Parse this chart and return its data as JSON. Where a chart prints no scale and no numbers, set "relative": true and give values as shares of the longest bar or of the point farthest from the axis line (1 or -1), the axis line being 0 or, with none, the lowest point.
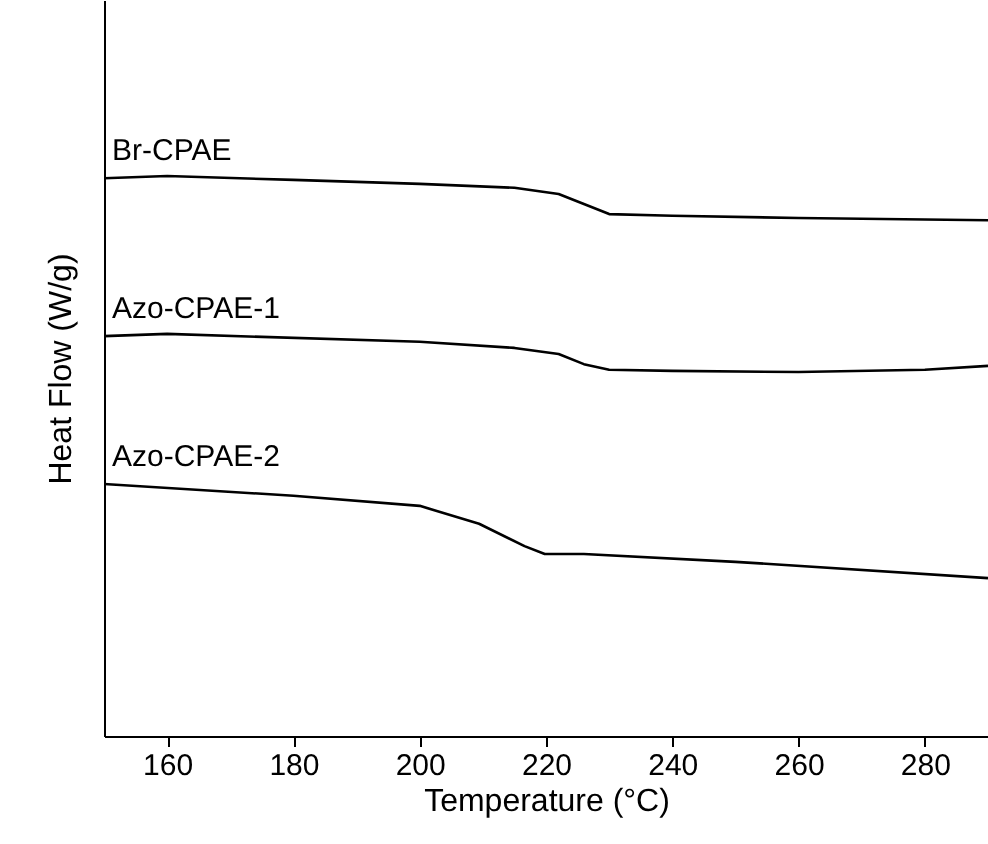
{
  "chart_data": {
    "type": "line",
    "xlabel": "Temperature (°C)",
    "ylabel": "Heat Flow (W/g)",
    "relative": true,
    "xlim": [
      150,
      290
    ],
    "xticks": [
      160,
      180,
      200,
      220,
      240,
      260,
      280
    ],
    "series": [
      {
        "name": "Br-CPAE",
        "color": "#000000",
        "x": [
          150,
          160,
          180,
          200,
          215,
          222,
          226,
          230,
          240,
          260,
          290
        ],
        "values": [
          0.996,
          1.0,
          0.993,
          0.986,
          0.979,
          0.968,
          0.95,
          0.932,
          0.929,
          0.925,
          0.921
        ]
      },
      {
        "name": "Azo-CPAE-1",
        "color": "#000000",
        "x": [
          150,
          160,
          200,
          215,
          222,
          226,
          230,
          240,
          260,
          280,
          290
        ],
        "values": [
          0.714,
          0.718,
          0.704,
          0.693,
          0.682,
          0.664,
          0.654,
          0.652,
          0.65,
          0.654,
          0.661
        ]
      },
      {
        "name": "Azo-CPAE-2",
        "color": "#000000",
        "x": [
          150,
          180,
          200,
          209.4,
          216.6,
          219.8,
          226,
          250,
          290
        ],
        "values": [
          0.45,
          0.429,
          0.411,
          0.379,
          0.339,
          0.325,
          0.325,
          0.311,
          0.282
        ]
      }
    ]
  }
}
